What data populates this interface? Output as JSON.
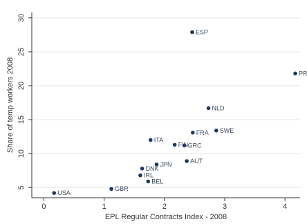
{
  "chart_data": {
    "type": "scatter",
    "xlabel": "EPL Regular Contracts Index - 2008",
    "ylabel": "Share of temp workers 2008",
    "xlim": [
      -0.2,
      4.25
    ],
    "ylim": [
      3.5,
      30.8
    ],
    "xticks": [
      0,
      1,
      2,
      3,
      4
    ],
    "yticks": [
      5,
      10,
      15,
      20,
      25,
      30
    ],
    "grid": "horizontal",
    "legend": "none",
    "marker_color": "#1c3a5e",
    "points": [
      {
        "label": "USA",
        "x": 0.17,
        "y": 4.2
      },
      {
        "label": "GBR",
        "x": 1.12,
        "y": 4.8
      },
      {
        "label": "BEL",
        "x": 1.73,
        "y": 5.9
      },
      {
        "label": "IRL",
        "x": 1.6,
        "y": 6.8
      },
      {
        "label": "DNK",
        "x": 1.63,
        "y": 7.8
      },
      {
        "label": "JPN",
        "x": 1.87,
        "y": 8.4
      },
      {
        "label": "AUT",
        "x": 2.37,
        "y": 8.9
      },
      {
        "label": "ITA",
        "x": 1.77,
        "y": 12.0
      },
      {
        "label": "FIN",
        "x": 2.17,
        "y": 11.3
      },
      {
        "label": "GRC",
        "x": 2.33,
        "y": 11.2
      },
      {
        "label": "FRA",
        "x": 2.47,
        "y": 13.1
      },
      {
        "label": "SWE",
        "x": 2.86,
        "y": 13.4
      },
      {
        "label": "NLD",
        "x": 2.73,
        "y": 16.7
      },
      {
        "label": "ESP",
        "x": 2.46,
        "y": 27.9
      },
      {
        "label": "PRT",
        "x": 4.17,
        "y": 21.8
      }
    ]
  }
}
